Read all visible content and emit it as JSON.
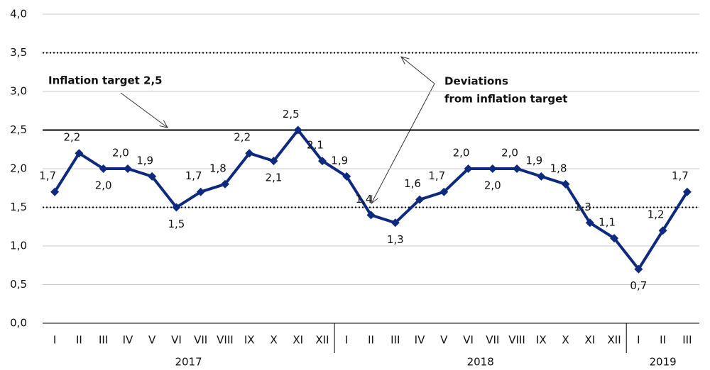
{
  "chart_data": {
    "type": "line",
    "category_groups": [
      {
        "label": "2017",
        "categories": [
          "I",
          "II",
          "III",
          "IV",
          "V",
          "VI",
          "VII",
          "VIII",
          "IX",
          "X",
          "XI",
          "XII"
        ]
      },
      {
        "label": "2018",
        "categories": [
          "I",
          "II",
          "III",
          "IV",
          "V",
          "VI",
          "VII",
          "VIII",
          "IX",
          "X",
          "XI",
          "XII"
        ]
      },
      {
        "label": "2019",
        "categories": [
          "I",
          "II",
          "III"
        ]
      }
    ],
    "series": [
      {
        "color": "#0d2a7e",
        "values": [
          1.7,
          2.2,
          2.0,
          2.0,
          1.9,
          1.5,
          1.7,
          1.8,
          2.2,
          2.1,
          2.5,
          2.1,
          1.9,
          1.4,
          1.3,
          1.6,
          1.7,
          2.0,
          2.0,
          2.0,
          1.9,
          1.8,
          1.3,
          1.1,
          0.7,
          1.2,
          1.7
        ],
        "value_labels": [
          "1,7",
          "2,2",
          "2,0",
          "2,0",
          "1,9",
          "1,5",
          "1,7",
          "1,8",
          "2,2",
          "2,1",
          "2,5",
          "2,1",
          "1,9",
          "1,4",
          "1,3",
          "1,6",
          "1,7",
          "2,0",
          "2,0",
          "2,0",
          "1,9",
          "1,8",
          "1,3",
          "1,1",
          "0,7",
          "1,2",
          "1,7"
        ]
      }
    ],
    "ylim": [
      0,
      4
    ],
    "yticks": [
      {
        "value": 0,
        "label": "0,0"
      },
      {
        "value": 0.5,
        "label": "0,5"
      },
      {
        "value": 1,
        "label": "1,0"
      },
      {
        "value": 1.5,
        "label": "1,5"
      },
      {
        "value": 2,
        "label": "2,0"
      },
      {
        "value": 2.5,
        "label": "2,5"
      },
      {
        "value": 3,
        "label": "3,0"
      },
      {
        "value": 3.5,
        "label": "3,5"
      },
      {
        "value": 4,
        "label": "4,0"
      }
    ],
    "grid": true,
    "target": {
      "value": 2.5,
      "label": "Inflation target 2,5"
    },
    "deviation_lines": [
      3.5,
      1.5
    ],
    "deviation_label": [
      "Deviations",
      "from inflation target"
    ]
  }
}
